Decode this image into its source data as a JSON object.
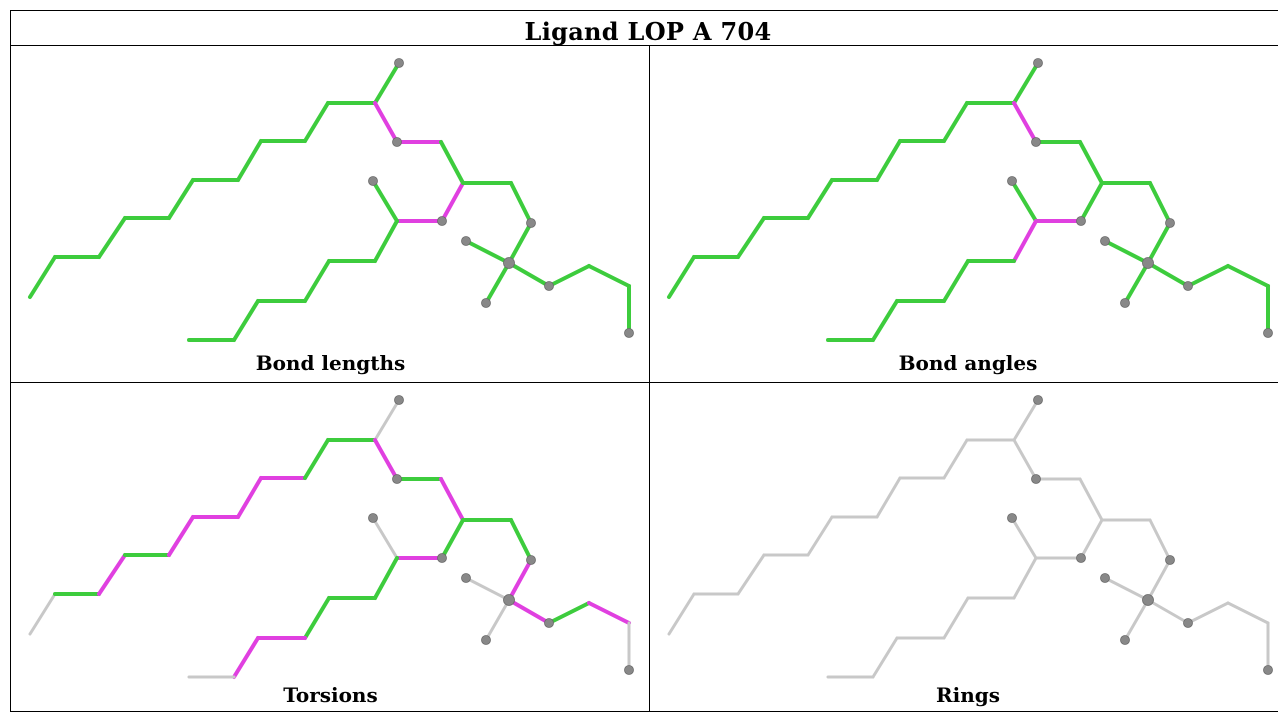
{
  "title": "Ligand LOP A 704",
  "panels": [
    {
      "caption": "Bond lengths",
      "mode": "lengths"
    },
    {
      "caption": "Bond angles",
      "mode": "angles"
    },
    {
      "caption": "Torsions",
      "mode": "torsions"
    },
    {
      "caption": "Rings",
      "mode": "rings"
    }
  ],
  "colors": {
    "ok": "#3dcc3d",
    "outlier": "#e040e0",
    "neutral": "#c8c8c8",
    "atom": "#888888"
  }
}
